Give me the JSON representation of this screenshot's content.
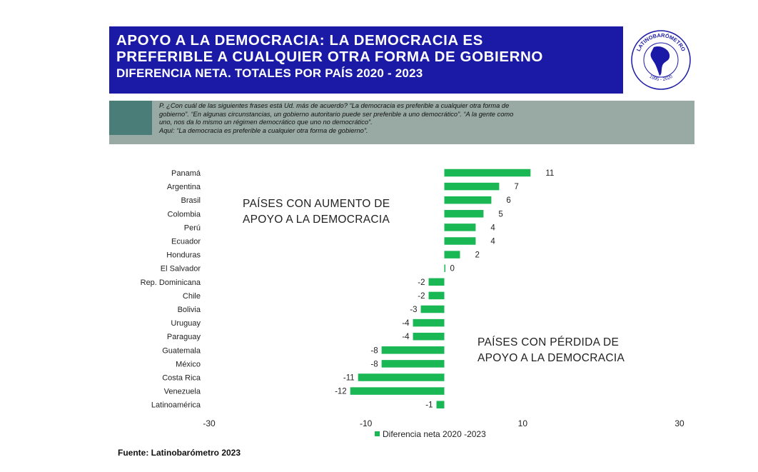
{
  "header": {
    "line1": "APOYO A LA DEMOCRACIA: LA DEMOCRACIA ES",
    "line2": "PREFERIBLE A CUALQUIER OTRA FORMA DE GOBIERNO",
    "line3": "DIFERENCIA NETA. TOTALES POR PAÍS  2020 - 2023"
  },
  "logo": {
    "text_top": "LATINOBARÓMETRO",
    "text_bottom": "1995 - 2020",
    "colors": {
      "ring": "#1a1aa6",
      "text": "#1a1aa6"
    }
  },
  "question": {
    "line1": "P. ¿Con cuál de las siguientes frases está Ud. más de acuerdo? “La democracia es preferible a cualquier otra forma de",
    "line2": "gobierno”. “En algunas circunstancias, un gobierno autoritario puede ser preferible a uno democrático”. “A la gente como",
    "line3": "uno, nos da lo mismo un régimen democrático que uno no democrático”.",
    "line4": "Aquí: “La democracia es preferible a cualquier otra forma de gobierno”."
  },
  "annotations": {
    "up_line1": "PAÍSES CON AUMENTO DE",
    "up_line2": "APOYO A LA DEMOCRACIA",
    "down_line1": "PAÍSES CON PÉRDIDA DE",
    "down_line2": "APOYO A LA DEMOCRACIA"
  },
  "source": "Fuente: Latinobarómetro 2023",
  "chart_data": {
    "type": "bar",
    "orientation": "horizontal",
    "categories": [
      "Panamá",
      "Argentina",
      "Brasil",
      "Colombia",
      "Perú",
      "Ecuador",
      "Honduras",
      "El Salvador",
      "Rep. Dominicana",
      "Chile",
      "Bolivia",
      "Uruguay",
      "Paraguay",
      "Guatemala",
      "México",
      "Costa Rica",
      "Venezuela",
      "Latinoamérica"
    ],
    "series": [
      {
        "name": "Diferencia neta 2020 -2023",
        "values": [
          11,
          7,
          6,
          5,
          4,
          4,
          2,
          0,
          -2,
          -2,
          -3,
          -4,
          -4,
          -8,
          -8,
          -11,
          -12,
          -1
        ],
        "color": "#1ab755"
      }
    ],
    "xlim": [
      -30,
      30
    ],
    "xticks": [
      -30,
      -10,
      10,
      30
    ],
    "xtick_labels": [
      "-30",
      "-10",
      "10",
      "30"
    ],
    "grid": false,
    "legend_position": "bottom"
  }
}
